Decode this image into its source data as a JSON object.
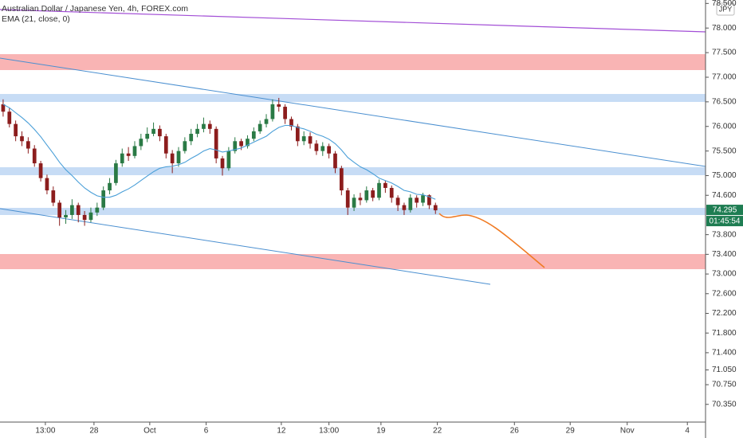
{
  "chart_data": {
    "type": "candlestick",
    "title": "Australian Dollar / Japanese Yen, 4h, FOREX.com",
    "currency": "JPY",
    "countdown": "01:45:54",
    "up_color": "#2a7a45",
    "down_color": "#8c1d1d",
    "open": [
      76.45,
      76.3,
      76.05,
      75.8,
      75.7,
      75.55,
      75.25,
      74.95,
      74.7,
      74.45,
      74.15,
      74.2,
      74.4,
      74.2,
      74.1,
      74.25,
      74.35,
      74.7,
      74.85,
      75.25,
      75.45,
      75.4,
      75.6,
      75.75,
      75.85,
      75.95,
      75.8,
      75.45,
      75.25,
      75.5,
      75.7,
      75.85,
      75.95,
      76.05,
      75.95,
      75.35,
      75.15,
      75.5,
      75.7,
      75.6,
      75.75,
      75.9,
      76.05,
      76.15,
      76.45,
      76.4,
      76.15,
      76.0,
      75.7,
      75.8,
      75.65,
      75.5,
      75.6,
      75.45,
      75.15,
      74.7,
      74.35,
      74.55,
      74.5,
      74.7,
      74.55,
      74.85,
      74.75,
      74.55,
      74.4,
      74.3,
      74.55,
      74.45,
      74.6,
      74.4
    ],
    "high": [
      76.55,
      76.38,
      76.12,
      75.9,
      75.78,
      75.62,
      75.3,
      75.02,
      74.78,
      74.5,
      74.3,
      74.52,
      74.45,
      74.28,
      74.35,
      74.45,
      74.78,
      74.95,
      75.32,
      75.55,
      75.58,
      75.7,
      75.85,
      75.98,
      76.08,
      76.02,
      75.85,
      75.52,
      75.58,
      75.78,
      75.95,
      76.05,
      76.18,
      76.12,
      76.0,
      75.4,
      75.58,
      75.78,
      75.75,
      75.82,
      75.98,
      76.12,
      76.25,
      76.55,
      76.58,
      76.45,
      76.2,
      76.05,
      75.9,
      75.88,
      75.72,
      75.68,
      75.65,
      75.5,
      75.2,
      74.75,
      74.62,
      74.65,
      74.78,
      74.75,
      74.92,
      74.9,
      74.8,
      74.6,
      74.45,
      74.62,
      74.6,
      74.65,
      74.62,
      74.45
    ],
    "low": [
      76.2,
      75.98,
      75.7,
      75.6,
      75.45,
      75.18,
      74.88,
      74.62,
      74.38,
      73.98,
      74.02,
      74.12,
      74.05,
      73.98,
      74.05,
      74.18,
      74.3,
      74.62,
      74.8,
      75.18,
      75.3,
      75.35,
      75.52,
      75.68,
      75.8,
      75.7,
      75.35,
      75.05,
      75.18,
      75.45,
      75.62,
      75.78,
      75.88,
      75.85,
      75.25,
      75.0,
      75.1,
      75.45,
      75.52,
      75.55,
      75.7,
      75.85,
      75.98,
      76.1,
      76.3,
      76.05,
      75.92,
      75.6,
      75.62,
      75.55,
      75.42,
      75.4,
      75.35,
      75.05,
      74.6,
      74.2,
      74.28,
      74.4,
      74.45,
      74.48,
      74.5,
      74.65,
      74.45,
      74.28,
      74.2,
      74.25,
      74.35,
      74.38,
      74.32,
      74.22
    ],
    "close": [
      76.3,
      76.05,
      75.8,
      75.7,
      75.55,
      75.25,
      74.95,
      74.7,
      74.45,
      74.15,
      74.2,
      74.4,
      74.2,
      74.1,
      74.25,
      74.35,
      74.7,
      74.85,
      75.25,
      75.45,
      75.4,
      75.6,
      75.75,
      75.85,
      75.95,
      75.8,
      75.45,
      75.25,
      75.5,
      75.7,
      75.85,
      75.95,
      76.05,
      75.95,
      75.35,
      75.15,
      75.5,
      75.7,
      75.6,
      75.75,
      75.9,
      76.05,
      76.15,
      76.45,
      76.4,
      76.15,
      76.0,
      75.7,
      75.8,
      75.65,
      75.5,
      75.6,
      75.45,
      75.15,
      74.7,
      74.35,
      74.55,
      74.5,
      74.7,
      74.55,
      74.85,
      74.75,
      74.55,
      74.4,
      74.3,
      74.55,
      74.45,
      74.6,
      74.4,
      74.295
    ],
    "series": [
      {
        "name": "EMA (21, close, 0)",
        "color": "#4a9fd8",
        "values": [
          76.45,
          76.38,
          76.28,
          76.18,
          76.07,
          75.94,
          75.79,
          75.62,
          75.45,
          75.27,
          75.12,
          75.0,
          74.87,
          74.75,
          74.66,
          74.59,
          74.56,
          74.56,
          74.6,
          74.67,
          74.73,
          74.81,
          74.9,
          74.99,
          75.08,
          75.15,
          75.18,
          75.19,
          75.22,
          75.27,
          75.35,
          75.42,
          75.5,
          75.55,
          75.52,
          75.48,
          75.5,
          75.53,
          75.56,
          75.62,
          75.68,
          75.74,
          75.8,
          75.9,
          75.98,
          76.02,
          76.02,
          75.98,
          75.95,
          75.9,
          75.84,
          75.8,
          75.74,
          75.65,
          75.52,
          75.37,
          75.27,
          75.18,
          75.12,
          75.04,
          74.95,
          74.9,
          74.85,
          74.78,
          74.7,
          74.67,
          74.62,
          74.61,
          74.57,
          74.52
        ]
      }
    ],
    "ylim": [
      69.99,
      78.57
    ],
    "yticks": [
      {
        "value": 78.5,
        "label": "78.500"
      },
      {
        "value": 78,
        "label": "78.000"
      },
      {
        "value": 77.5,
        "label": "77.500"
      },
      {
        "value": 77,
        "label": "77.000"
      },
      {
        "value": 76.5,
        "label": "76.500"
      },
      {
        "value": 76,
        "label": "76.000"
      },
      {
        "value": 75.5,
        "label": "75.500"
      },
      {
        "value": 75,
        "label": "75.000"
      },
      {
        "value": 74.6,
        "label": "74.600"
      },
      {
        "value": 73.8,
        "label": "73.800"
      },
      {
        "value": 73.4,
        "label": "73.400"
      },
      {
        "value": 73,
        "label": "73.000"
      },
      {
        "value": 72.6,
        "label": "72.600"
      },
      {
        "value": 72.2,
        "label": "72.200"
      },
      {
        "value": 71.8,
        "label": "71.800"
      },
      {
        "value": 71.4,
        "label": "71.400"
      },
      {
        "value": 71.05,
        "label": "71.050"
      },
      {
        "value": 70.75,
        "label": "70.750"
      },
      {
        "value": 70.35,
        "label": "70.350"
      }
    ],
    "xlim": [
      -0.5,
      112.1
    ],
    "xticks": [
      {
        "value": 6.74,
        "label": "13:00"
      },
      {
        "value": 14.5,
        "label": "28"
      },
      {
        "value": 23.4,
        "label": "Oct"
      },
      {
        "value": 32.4,
        "label": "6"
      },
      {
        "value": 44.4,
        "label": "12"
      },
      {
        "value": 52.0,
        "label": "13:00"
      },
      {
        "value": 60.3,
        "label": "19"
      },
      {
        "value": 69.3,
        "label": "22"
      },
      {
        "value": 81.6,
        "label": "26"
      },
      {
        "value": 90.5,
        "label": "29"
      },
      {
        "value": 99.6,
        "label": "Nov"
      },
      {
        "value": 109.2,
        "label": "4"
      }
    ]
  }
}
